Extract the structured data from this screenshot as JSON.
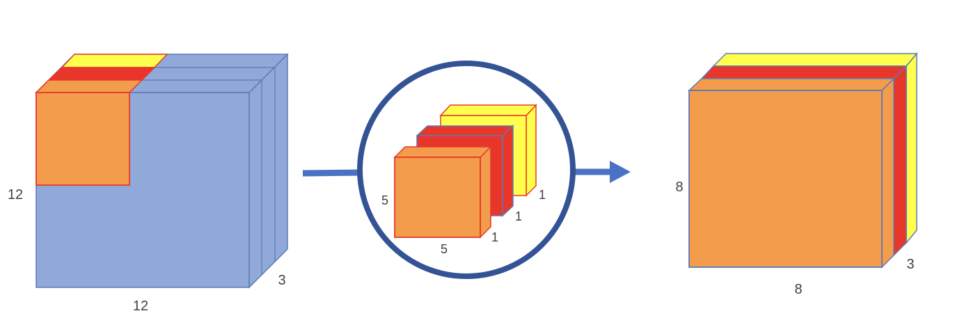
{
  "colors": {
    "blue_face": "#90A9D8",
    "blue_edge": "#5E79B6",
    "orange": "#F29C4C",
    "red": "#E8372A",
    "yellow": "#FFFF4D",
    "ring": "#345395",
    "arrow": "#4A72C4",
    "filter_edge_orange": "#E8372A",
    "output_edge": "#5E79B6"
  },
  "input_volume": {
    "height_label": "12",
    "width_label": "12",
    "depth_label": "3"
  },
  "filter": {
    "height_label": "5",
    "width_label": "5",
    "depth_labels": [
      "1",
      "1",
      "1"
    ]
  },
  "output_volume": {
    "height_label": "8",
    "width_label": "8",
    "depth_label": "3"
  }
}
